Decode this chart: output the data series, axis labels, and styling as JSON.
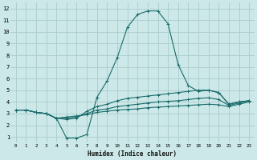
{
  "xlabel": "Humidex (Indice chaleur)",
  "background_color": "#cce8e8",
  "grid_color": "#aacccc",
  "line_color": "#1a6b6b",
  "xlim": [
    -0.5,
    23.5
  ],
  "ylim": [
    0.5,
    12.5
  ],
  "xticks": [
    0,
    1,
    2,
    3,
    4,
    5,
    6,
    7,
    8,
    9,
    10,
    11,
    12,
    13,
    14,
    15,
    16,
    17,
    18,
    19,
    20,
    21,
    22,
    23
  ],
  "yticks": [
    1,
    2,
    3,
    4,
    5,
    6,
    7,
    8,
    9,
    10,
    11,
    12
  ],
  "series": [
    {
      "x": [
        0,
        1,
        2,
        3,
        4,
        5,
        6,
        7,
        8,
        9,
        10,
        11,
        12,
        13,
        14,
        15,
        16,
        17,
        18,
        19,
        20,
        21,
        22,
        23
      ],
      "y": [
        3.3,
        3.3,
        3.1,
        3.0,
        2.6,
        0.9,
        0.9,
        1.2,
        4.4,
        5.8,
        7.8,
        10.4,
        11.5,
        11.8,
        11.8,
        10.7,
        7.2,
        5.4,
        4.9,
        5.0,
        4.8,
        3.8,
        4.0,
        4.1
      ]
    },
    {
      "x": [
        0,
        1,
        2,
        3,
        4,
        5,
        6,
        7,
        8,
        9,
        10,
        11,
        12,
        13,
        14,
        15,
        16,
        17,
        18,
        19,
        20,
        21,
        22,
        23
      ],
      "y": [
        3.3,
        3.3,
        3.1,
        3.0,
        2.6,
        2.5,
        2.6,
        3.2,
        3.6,
        3.8,
        4.1,
        4.3,
        4.4,
        4.5,
        4.6,
        4.7,
        4.8,
        4.9,
        5.0,
        5.0,
        4.8,
        3.8,
        4.0,
        4.1
      ]
    },
    {
      "x": [
        0,
        1,
        2,
        3,
        4,
        5,
        6,
        7,
        8,
        9,
        10,
        11,
        12,
        13,
        14,
        15,
        16,
        17,
        18,
        19,
        20,
        21,
        22,
        23
      ],
      "y": [
        3.3,
        3.3,
        3.1,
        3.0,
        2.6,
        2.6,
        2.7,
        3.0,
        3.3,
        3.4,
        3.6,
        3.7,
        3.8,
        3.9,
        4.0,
        4.05,
        4.1,
        4.2,
        4.3,
        4.35,
        4.2,
        3.7,
        3.9,
        4.1
      ]
    },
    {
      "x": [
        0,
        1,
        2,
        3,
        4,
        5,
        6,
        7,
        8,
        9,
        10,
        11,
        12,
        13,
        14,
        15,
        16,
        17,
        18,
        19,
        20,
        21,
        22,
        23
      ],
      "y": [
        3.3,
        3.3,
        3.1,
        3.0,
        2.6,
        2.7,
        2.8,
        2.9,
        3.1,
        3.2,
        3.3,
        3.35,
        3.4,
        3.5,
        3.55,
        3.6,
        3.65,
        3.7,
        3.75,
        3.8,
        3.75,
        3.6,
        3.8,
        4.0
      ]
    }
  ]
}
